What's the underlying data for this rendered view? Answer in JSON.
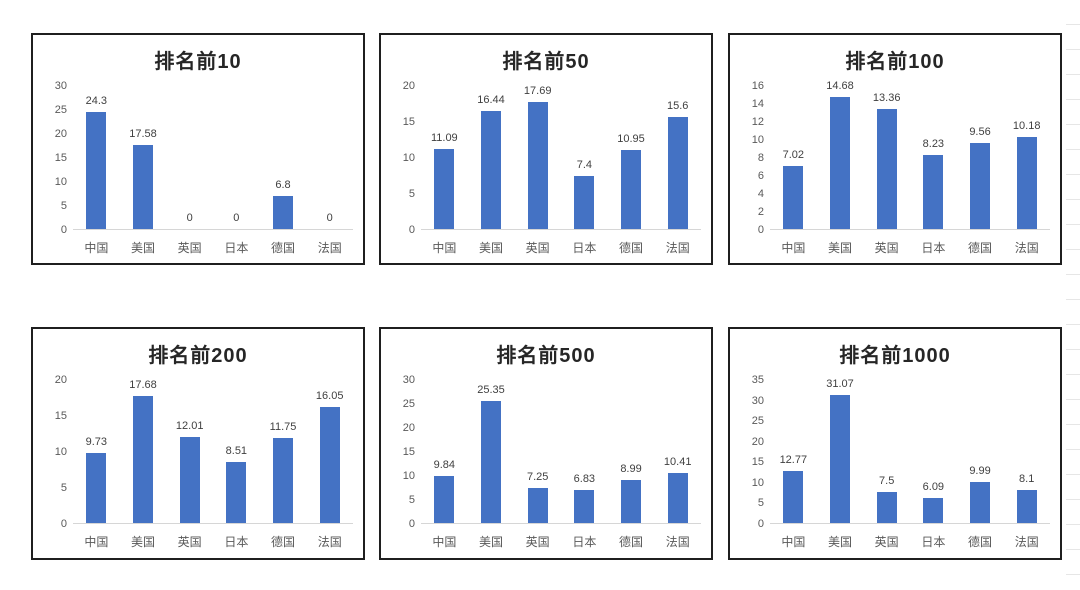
{
  "page": {
    "background_color": "#ffffff",
    "sheet_gridline_color": "#e6e6e6",
    "panel_border_color": "#1f1f1f"
  },
  "styles": {
    "bar_color": "#4472C4",
    "title_color": "#262626",
    "axis_tick_color": "#595959",
    "data_label_color": "#404040",
    "axis_line_color": "#d6d6d6"
  },
  "chart_data": [
    {
      "type": "bar",
      "title": "排名前10",
      "categories": [
        "中国",
        "美国",
        "英国",
        "日本",
        "德国",
        "法国"
      ],
      "values": [
        24.3,
        17.58,
        0,
        0,
        6.8,
        0
      ],
      "ylim": [
        0,
        30
      ],
      "yticks": [
        0,
        5,
        10,
        15,
        20,
        25,
        30
      ],
      "xlabel": "",
      "ylabel": "",
      "grid": false,
      "legend": "none",
      "data_labels": true,
      "bar_color": "#4472C4"
    },
    {
      "type": "bar",
      "title": "排名前50",
      "categories": [
        "中国",
        "美国",
        "英国",
        "日本",
        "德国",
        "法国"
      ],
      "values": [
        11.09,
        16.44,
        17.69,
        7.4,
        10.95,
        15.6
      ],
      "ylim": [
        0,
        20
      ],
      "yticks": [
        0,
        5,
        10,
        15,
        20
      ],
      "xlabel": "",
      "ylabel": "",
      "grid": false,
      "legend": "none",
      "data_labels": true,
      "bar_color": "#4472C4"
    },
    {
      "type": "bar",
      "title": "排名前100",
      "categories": [
        "中国",
        "美国",
        "英国",
        "日本",
        "德国",
        "法国"
      ],
      "values": [
        7.02,
        14.68,
        13.36,
        8.23,
        9.56,
        10.18
      ],
      "ylim": [
        0,
        16
      ],
      "yticks": [
        0,
        2,
        4,
        6,
        8,
        10,
        12,
        14,
        16
      ],
      "xlabel": "",
      "ylabel": "",
      "grid": false,
      "legend": "none",
      "data_labels": true,
      "bar_color": "#4472C4"
    },
    {
      "type": "bar",
      "title": "排名前200",
      "categories": [
        "中国",
        "美国",
        "英国",
        "日本",
        "德国",
        "法国"
      ],
      "values": [
        9.73,
        17.68,
        12.01,
        8.51,
        11.75,
        16.05
      ],
      "ylim": [
        0,
        20
      ],
      "yticks": [
        0,
        5,
        10,
        15,
        20
      ],
      "xlabel": "",
      "ylabel": "",
      "grid": false,
      "legend": "none",
      "data_labels": true,
      "bar_color": "#4472C4"
    },
    {
      "type": "bar",
      "title": "排名前500",
      "categories": [
        "中国",
        "美国",
        "英国",
        "日本",
        "德国",
        "法国"
      ],
      "values": [
        9.84,
        25.35,
        7.25,
        6.83,
        8.99,
        10.41
      ],
      "ylim": [
        0,
        30
      ],
      "yticks": [
        0,
        5,
        10,
        15,
        20,
        25,
        30
      ],
      "xlabel": "",
      "ylabel": "",
      "grid": false,
      "legend": "none",
      "data_labels": true,
      "bar_color": "#4472C4"
    },
    {
      "type": "bar",
      "title": "排名前1000",
      "categories": [
        "中国",
        "美国",
        "英国",
        "日本",
        "德国",
        "法国"
      ],
      "values": [
        12.77,
        31.07,
        7.5,
        6.09,
        9.99,
        8.1
      ],
      "ylim": [
        0,
        35
      ],
      "yticks": [
        0,
        5,
        10,
        15,
        20,
        25,
        30,
        35
      ],
      "xlabel": "",
      "ylabel": "",
      "grid": false,
      "legend": "none",
      "data_labels": true,
      "bar_color": "#4472C4"
    }
  ]
}
